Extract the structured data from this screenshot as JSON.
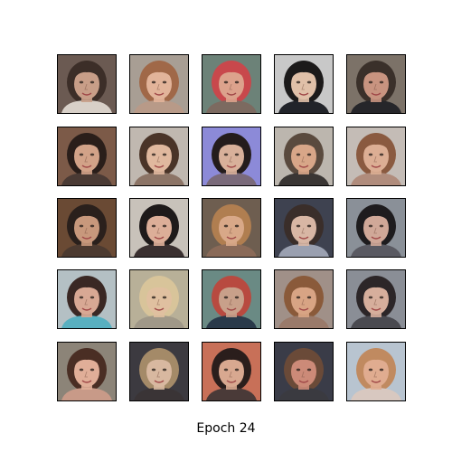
{
  "figure": {
    "caption": "Epoch 24"
  },
  "samples": [
    {
      "name": "generated-face-1",
      "bg": "#6b5a52",
      "skin": "#c89e88",
      "hair": "#3c2e28",
      "shirt": "#d8d0c8"
    },
    {
      "name": "generated-face-2",
      "bg": "#a89e94",
      "skin": "#e2b49a",
      "hair": "#a06848",
      "shirt": "#b89a88"
    },
    {
      "name": "generated-face-3",
      "bg": "#6c8278",
      "skin": "#dca28c",
      "hair": "#c8484c",
      "shirt": "#7c6a60"
    },
    {
      "name": "generated-face-4",
      "bg": "#c8c8c8",
      "skin": "#e0c0a8",
      "hair": "#1c1a1a",
      "shirt": "#22242a"
    },
    {
      "name": "generated-face-5",
      "bg": "#7c7268",
      "skin": "#c89480",
      "hair": "#3a302a",
      "shirt": "#26262a"
    },
    {
      "name": "generated-face-6",
      "bg": "#7c5a48",
      "skin": "#d2a288",
      "hair": "#2a1e1a",
      "shirt": "#4a3a34"
    },
    {
      "name": "generated-face-7",
      "bg": "#c0b8b0",
      "skin": "#e0b89e",
      "hair": "#4a3428",
      "shirt": "#8c7466"
    },
    {
      "name": "generated-face-8",
      "bg": "#8c8ad8",
      "skin": "#d8b09a",
      "hair": "#241c1c",
      "shirt": "#7a6a7a"
    },
    {
      "name": "generated-face-9",
      "bg": "#bcb6ae",
      "skin": "#d8a688",
      "hair": "#5a4a3e",
      "shirt": "#3a3634"
    },
    {
      "name": "generated-face-10",
      "bg": "#c4bcb6",
      "skin": "#dcae94",
      "hair": "#8a5a40",
      "shirt": "#b08c7c"
    },
    {
      "name": "generated-face-11",
      "bg": "#6a4a34",
      "skin": "#c8987c",
      "hair": "#2a201c",
      "shirt": "#4c3a30"
    },
    {
      "name": "generated-face-12",
      "bg": "#c8c2ba",
      "skin": "#dcae98",
      "hair": "#1e1a1a",
      "shirt": "#3a3030"
    },
    {
      "name": "generated-face-13",
      "bg": "#6e5e50",
      "skin": "#d8a888",
      "hair": "#b07e50",
      "shirt": "#8a6a58"
    },
    {
      "name": "generated-face-14",
      "bg": "#3e4250",
      "skin": "#d8b6a4",
      "hair": "#3a2e2a",
      "shirt": "#9aa0b0"
    },
    {
      "name": "generated-face-15",
      "bg": "#8a9098",
      "skin": "#d0a898",
      "hair": "#1e1c1e",
      "shirt": "#5a5a62"
    },
    {
      "name": "generated-face-16",
      "bg": "#b4c0c4",
      "skin": "#d8a894",
      "hair": "#3a2824",
      "shirt": "#58b0c0"
    },
    {
      "name": "generated-face-17",
      "bg": "#b8b098",
      "skin": "#e0c0a0",
      "hair": "#d8c49a",
      "shirt": "#a09888"
    },
    {
      "name": "generated-face-18",
      "bg": "#6a8a84",
      "skin": "#c8a08a",
      "hair": "#b84a40",
      "shirt": "#2a3a4a"
    },
    {
      "name": "generated-face-19",
      "bg": "#a09088",
      "skin": "#d8a484",
      "hair": "#8a5a3a",
      "shirt": "#9a7a6a"
    },
    {
      "name": "generated-face-20",
      "bg": "#8a8e96",
      "skin": "#d6ae9c",
      "hair": "#2c2628",
      "shirt": "#4a4a50"
    },
    {
      "name": "generated-face-21",
      "bg": "#8c8478",
      "skin": "#e0ae98",
      "hair": "#4a2e24",
      "shirt": "#c89a88"
    },
    {
      "name": "generated-face-22",
      "bg": "#3c3a40",
      "skin": "#d8b8a0",
      "hair": "#a48a68",
      "shirt": "#3a3436"
    },
    {
      "name": "generated-face-23",
      "bg": "#c87058",
      "skin": "#d8a890",
      "hair": "#2a1e1c",
      "shirt": "#4a3a38"
    },
    {
      "name": "generated-face-24",
      "bg": "#3a3c48",
      "skin": "#cc8a78",
      "hair": "#6a4a38",
      "shirt": "#3a3a40"
    },
    {
      "name": "generated-face-25",
      "bg": "#b8c4d0",
      "skin": "#e0ac90",
      "hair": "#c08a60",
      "shirt": "#d8c8c0"
    }
  ]
}
